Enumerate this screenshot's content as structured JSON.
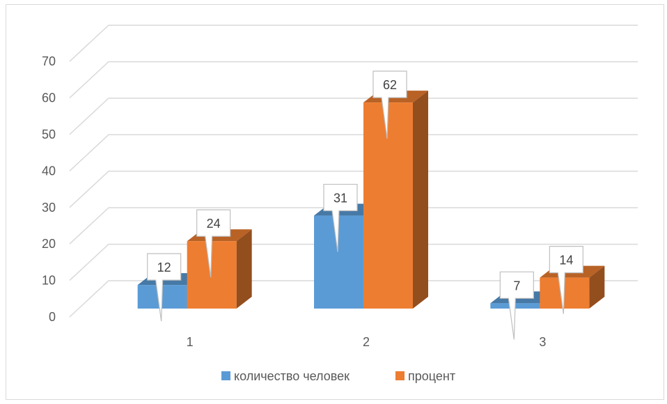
{
  "chart_data": {
    "type": "bar",
    "title": "",
    "xlabel": "",
    "ylabel": "",
    "categories": [
      "1",
      "2",
      "3"
    ],
    "series": [
      {
        "name": "количество человек",
        "values": [
          12,
          31,
          7
        ],
        "color": "#5B9BD5"
      },
      {
        "name": "процент",
        "values": [
          24,
          62,
          14
        ],
        "color": "#ED7D31"
      }
    ],
    "ylim": [
      0,
      70
    ],
    "yticks": [
      0,
      10,
      20,
      30,
      40,
      50,
      60,
      70
    ],
    "grid": true,
    "legend": "bottom",
    "style": "3d-clustered-columns"
  }
}
